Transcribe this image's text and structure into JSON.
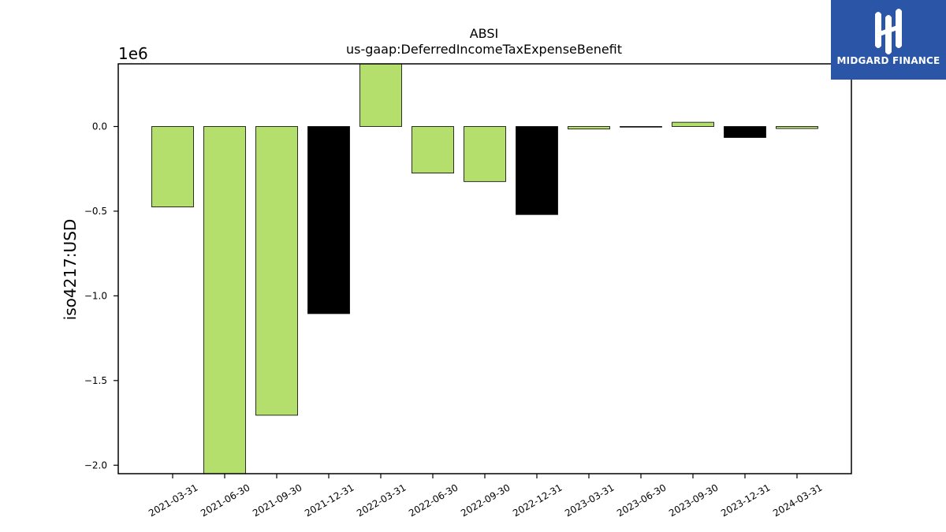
{
  "chart_data": {
    "type": "bar",
    "title": "ABSI",
    "subtitle": "us-gaap:DeferredIncomeTaxExpenseBenefit",
    "ylabel": "iso4217:USD",
    "xlabel": "",
    "offset_label": "1e6",
    "scale": 1000000,
    "ylim": [
      -2.05,
      0.37
    ],
    "yticks": [
      0.0,
      -0.5,
      -1.0,
      -1.5,
      -2.0
    ],
    "ytick_labels": [
      "0.0",
      "−0.5",
      "−1.0",
      "−1.5",
      "−2.0"
    ],
    "categories": [
      "2021-03-31",
      "2021-06-30",
      "2021-09-30",
      "2021-12-31",
      "2022-03-31",
      "2022-06-30",
      "2022-09-30",
      "2022-12-31",
      "2023-03-31",
      "2023-06-30",
      "2023-09-30",
      "2023-12-31",
      "2024-03-31"
    ],
    "values": [
      -0.475,
      -2.06,
      -1.705,
      -1.105,
      0.37,
      -0.275,
      -0.325,
      -0.52,
      -0.015,
      -0.003,
      0.025,
      -0.065,
      -0.012
    ],
    "bar_colors": [
      "#b5df6c",
      "#b5df6c",
      "#b5df6c",
      "#000000",
      "#b5df6c",
      "#b5df6c",
      "#b5df6c",
      "#000000",
      "#b5df6c",
      "#b5df6c",
      "#b5df6c",
      "#000000",
      "#b5df6c"
    ],
    "grid": false,
    "legend": "none"
  },
  "logo": {
    "text": "MIDGARD FINANCE",
    "color": "#2b56a8"
  }
}
